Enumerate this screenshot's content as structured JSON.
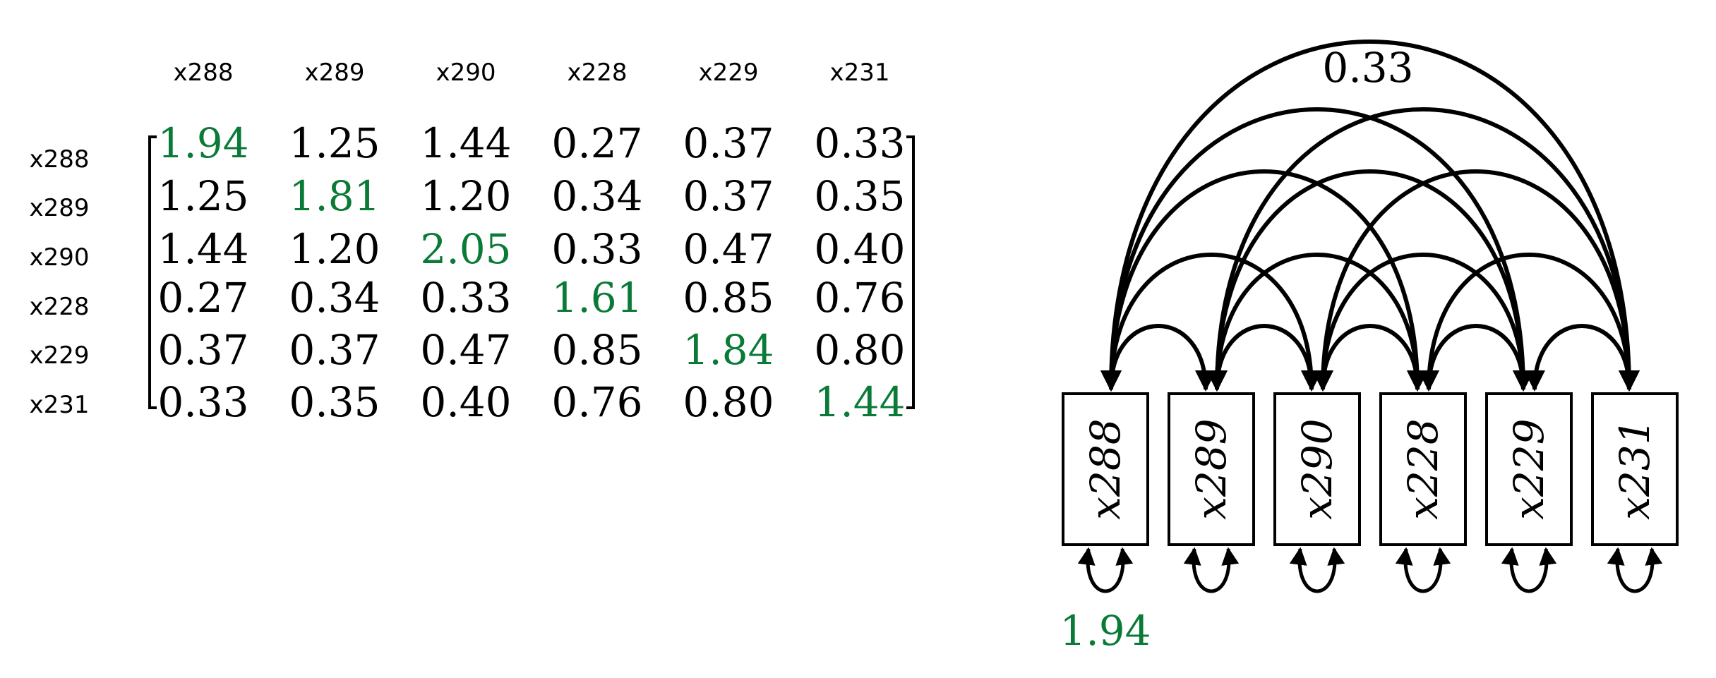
{
  "matrix": {
    "col_labels": [
      "x288",
      "x289",
      "x290",
      "x228",
      "x229",
      "x231"
    ],
    "row_labels": [
      "x288",
      "x289",
      "x290",
      "x228",
      "x229",
      "x231"
    ],
    "values": [
      [
        "1.94",
        "1.25",
        "1.44",
        "0.27",
        "0.37",
        "0.33"
      ],
      [
        "1.25",
        "1.81",
        "1.20",
        "0.34",
        "0.37",
        "0.35"
      ],
      [
        "1.44",
        "1.20",
        "2.05",
        "0.33",
        "0.47",
        "0.40"
      ],
      [
        "0.27",
        "0.34",
        "0.33",
        "1.61",
        "0.85",
        "0.76"
      ],
      [
        "0.37",
        "0.37",
        "0.47",
        "0.85",
        "1.84",
        "0.80"
      ],
      [
        "0.33",
        "0.35",
        "0.40",
        "0.76",
        "0.80",
        "1.44"
      ]
    ],
    "diagonal_color": "#0a7a37"
  },
  "path_diagram": {
    "nodes": [
      "x288",
      "x289",
      "x290",
      "x228",
      "x229",
      "x231"
    ],
    "top_arc_label": "0.33",
    "variance_label": "1.94",
    "variance_color": "#0a7a37"
  }
}
